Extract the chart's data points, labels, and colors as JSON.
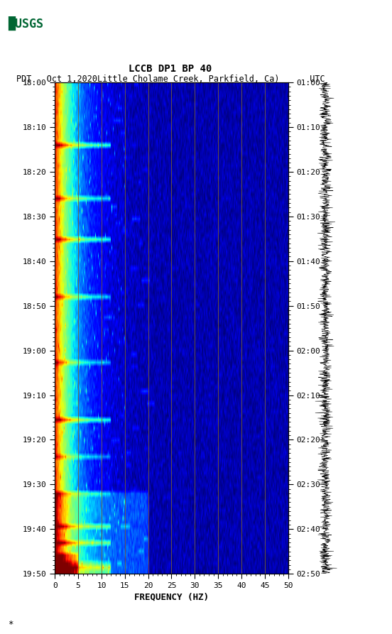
{
  "title_line1": "LCCB DP1 BP 40",
  "title_line2": "PDT   Oct 1,2020Little Cholame Creek, Parkfield, Ca)      UTC",
  "xlabel": "FREQUENCY (HZ)",
  "freq_min": 0,
  "freq_max": 50,
  "freq_ticks": [
    0,
    5,
    10,
    15,
    20,
    25,
    30,
    35,
    40,
    45,
    50
  ],
  "freq_tick_labels": [
    "0",
    "5",
    "10",
    "15",
    "20",
    "25",
    "30",
    "35",
    "40",
    "45",
    "50"
  ],
  "left_time_labels": [
    "18:00",
    "18:10",
    "18:20",
    "18:30",
    "18:40",
    "18:50",
    "19:00",
    "19:10",
    "19:20",
    "19:30",
    "19:40",
    "19:50"
  ],
  "right_time_labels": [
    "01:00",
    "01:10",
    "01:20",
    "01:30",
    "01:40",
    "01:50",
    "02:00",
    "02:10",
    "02:20",
    "02:30",
    "02:40",
    "02:50"
  ],
  "n_time_steps": 120,
  "n_freq_bins": 500,
  "vertical_lines_freq": [
    5,
    10,
    15,
    20,
    25,
    30,
    35,
    40,
    45
  ],
  "colormap": "jet",
  "bg_color": "white",
  "logo_color": "#006633",
  "figsize": [
    5.52,
    8.93
  ],
  "dpi": 100
}
